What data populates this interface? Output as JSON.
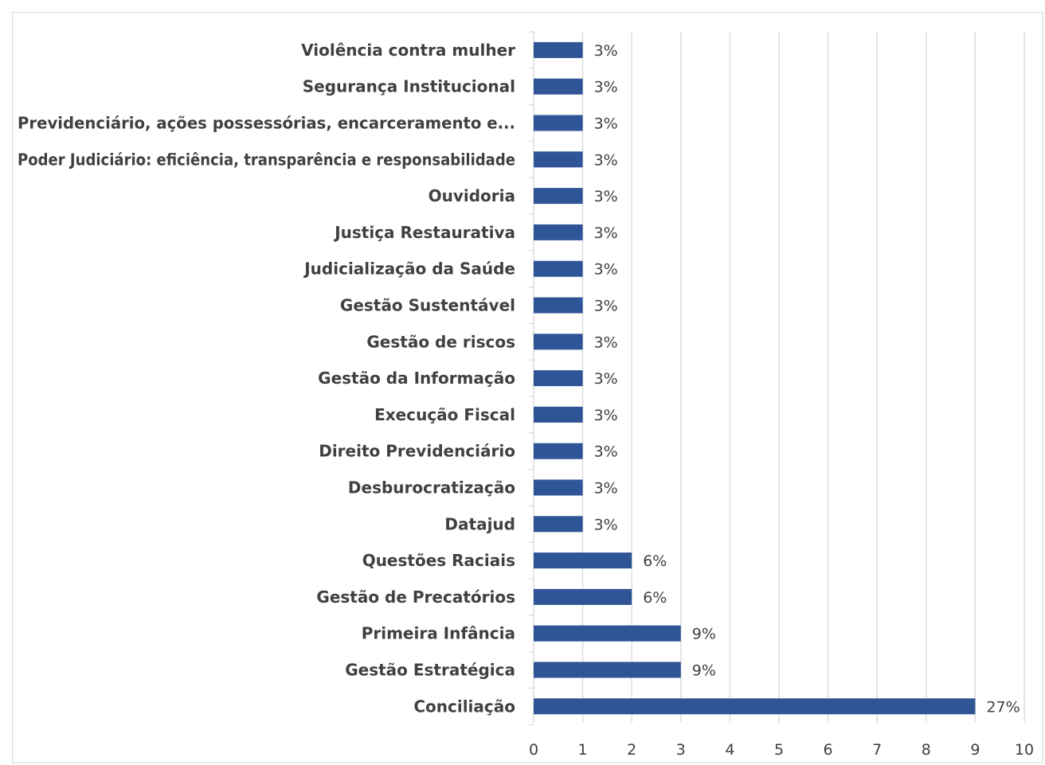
{
  "chart_data": {
    "type": "bar",
    "orientation": "horizontal",
    "categories": [
      "Violência contra mulher",
      "Segurança Institucional",
      "Previdenciário, ações possessórias, encarceramento e...",
      "Poder Judiciário: eficiência, transparência e responsabilidade",
      "Ouvidoria",
      "Justiça Restaurativa",
      "Judicialização da Saúde",
      "Gestão Sustentável",
      "Gestão de riscos",
      "Gestão da Informação",
      "Execução Fiscal",
      "Direito Previdenciário",
      "Desburocratização",
      "Datajud",
      "Questões Raciais",
      "Gestão de Precatórios",
      "Primeira Infância",
      "Gestão Estratégica",
      "Conciliação"
    ],
    "values": [
      1,
      1,
      1,
      1,
      1,
      1,
      1,
      1,
      1,
      1,
      1,
      1,
      1,
      1,
      2,
      2,
      3,
      3,
      9
    ],
    "data_labels": [
      "3%",
      "3%",
      "3%",
      "3%",
      "3%",
      "3%",
      "3%",
      "3%",
      "3%",
      "3%",
      "3%",
      "3%",
      "3%",
      "3%",
      "6%",
      "6%",
      "9%",
      "9%",
      "27%"
    ],
    "x_ticks": [
      "0",
      "1",
      "2",
      "3",
      "4",
      "5",
      "6",
      "7",
      "8",
      "9",
      "10"
    ],
    "xlim": [
      0,
      10
    ],
    "grid": true,
    "title": "",
    "xlabel": "",
    "ylabel": "",
    "colors": {
      "bar": "#2f5597",
      "grid": "#d9d9d9",
      "text": "#404040"
    }
  }
}
